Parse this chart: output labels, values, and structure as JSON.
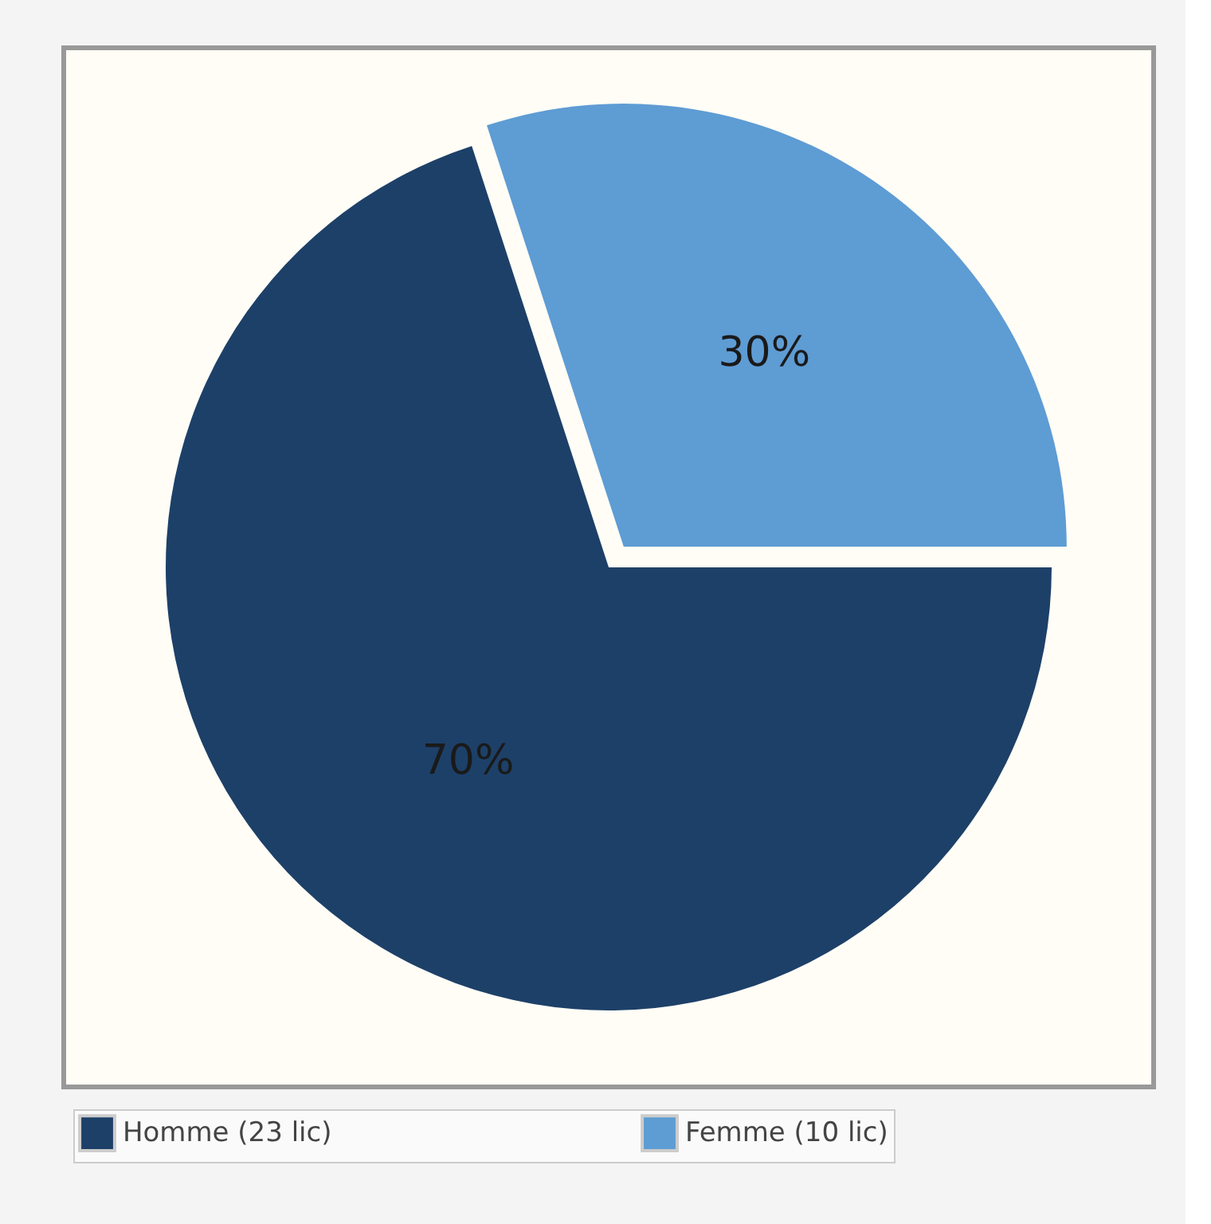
{
  "chart_data": {
    "type": "pie",
    "categories": [
      "Homme (23 lic)",
      "Femme (10 lic)"
    ],
    "values": [
      70,
      30
    ],
    "colors": [
      "#1d4068",
      "#5e9cd4"
    ],
    "value_labels": [
      "70%",
      "30%"
    ],
    "legend": "bottom"
  }
}
